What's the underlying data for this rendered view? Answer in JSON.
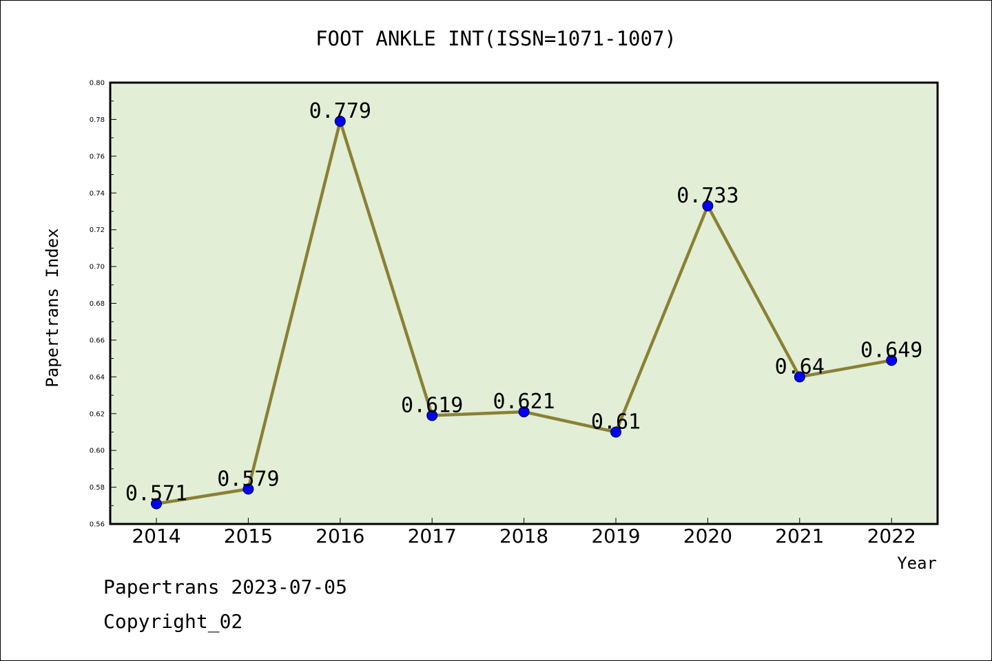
{
  "chart_data": {
    "type": "line",
    "title": "FOOT ANKLE INT(ISSN=1071-1007)",
    "xlabel": "Year",
    "ylabel": "Papertrans Index",
    "categories": [
      "2014",
      "2015",
      "2016",
      "2017",
      "2018",
      "2019",
      "2020",
      "2021",
      "2022"
    ],
    "series": [
      {
        "values": [
          0.571,
          0.579,
          0.779,
          0.619,
          0.621,
          0.61,
          0.733,
          0.64,
          0.649
        ],
        "labels": [
          "0.571",
          "0.579",
          "0.779",
          "0.619",
          "0.621",
          "0.61",
          "0.733",
          "0.64",
          "0.649"
        ]
      }
    ],
    "ylim": [
      0.56,
      0.8
    ],
    "yticks": [
      0.56,
      0.58,
      0.6,
      0.62,
      0.64,
      0.66,
      0.68,
      0.7,
      0.72,
      0.74,
      0.76,
      0.78,
      0.8
    ],
    "ytick_labels": [
      "0.56",
      "0.58",
      "0.60",
      "0.62",
      "0.64",
      "0.66",
      "0.68",
      "0.70",
      "0.72",
      "0.74",
      "0.76",
      "0.78",
      "0.80"
    ],
    "grid": false,
    "legend": "none",
    "colors": {
      "plot_background": "#e2efd6",
      "line": "#8b8035",
      "marker": "#0000ff"
    }
  },
  "footer": {
    "line1": "Papertrans 2023-07-05",
    "line2": "Copyright_02"
  }
}
